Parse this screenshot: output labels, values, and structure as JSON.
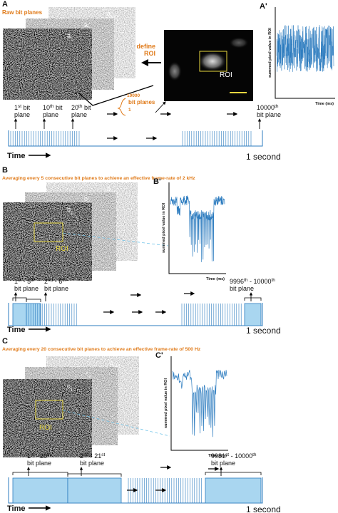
{
  "panel_a": {
    "letter": "A",
    "title": "Raw bit planes",
    "planes": [
      {
        "base": "a",
        "sub": "n+1"
      },
      {
        "base": "a",
        "sub": "n"
      },
      {
        "base": "a",
        "sub": "1"
      }
    ],
    "define_roi": [
      "define",
      "ROI"
    ],
    "roi": "ROI",
    "stack_count": [
      "10000",
      "bit planes"
    ],
    "stack_start": "1",
    "trace_letter": "A'",
    "trace_ylabel": "summed pixel value in ROI",
    "trace_xlabel": "Time (ms)",
    "timeline_labels": [
      {
        "lines": [
          [
            "1",
            {
              "sup": "st"
            },
            " bit"
          ],
          [
            "plane"
          ]
        ]
      },
      {
        "lines": [
          [
            "10",
            {
              "sup": "th"
            },
            " bit"
          ],
          [
            "plane"
          ]
        ]
      },
      {
        "lines": [
          [
            "20",
            {
              "sup": "th"
            },
            " bit"
          ],
          [
            "plane"
          ]
        ]
      },
      {
        "lines": [
          [
            "10000",
            {
              "sup": "th"
            }
          ],
          [
            "bit plane"
          ]
        ]
      }
    ],
    "time_label": "Time",
    "duration": "1 second"
  },
  "panel_b": {
    "letter": "B",
    "title": "Averaging every 5 consecutive bit planes to achieve an effective frame-rate of 2 kHz",
    "planes": [
      {
        "base": "b",
        "sub": "n+1"
      },
      {
        "base": "b",
        "sub": "n"
      },
      {
        "base": "b",
        "sub": "1"
      }
    ],
    "roi": "ROI",
    "trace_letter": "B'",
    "trace_ylabel": "summed pixel value in ROI",
    "trace_xlabel": "Time (ms)",
    "timeline_labels": [
      {
        "lines": [
          [
            "1",
            {
              "sup": "st"
            },
            " - 5",
            {
              "sup": "th"
            }
          ],
          [
            "bit plane"
          ]
        ]
      },
      {
        "lines": [
          [
            "2",
            {
              "sup": "nd"
            },
            " - 6",
            {
              "sup": "th"
            }
          ],
          [
            "bit plane"
          ]
        ]
      },
      {
        "lines": [
          [
            "9996",
            {
              "sup": "th"
            },
            " - 10000",
            {
              "sup": "th"
            }
          ],
          [
            "bit plane"
          ]
        ]
      }
    ],
    "time_label": "Time",
    "duration": "1 second"
  },
  "panel_c": {
    "letter": "C",
    "title": "Averaging every 20 consecutive bit planes to achieve an effective frame-rate of 500 Hz",
    "planes": [
      {
        "base": "c",
        "sub": "n+1"
      },
      {
        "base": "c",
        "sub": "n"
      },
      {
        "base": "c",
        "sub": "1"
      }
    ],
    "roi": "ROI",
    "trace_letter": "C'",
    "trace_ylabel": "summed pixel value in ROI",
    "trace_xlabel": "Time (ms)",
    "timeline_labels": [
      {
        "lines": [
          [
            "1",
            {
              "sup": "st"
            },
            " - 20",
            {
              "sup": "th"
            }
          ],
          [
            "bit plane"
          ]
        ]
      },
      {
        "lines": [
          [
            "2",
            {
              "sup": "nd"
            },
            " - 21",
            {
              "sup": "st"
            }
          ],
          [
            "bit plane"
          ]
        ]
      },
      {
        "lines": [
          [
            "9981",
            {
              "sup": "st"
            },
            " - 10000",
            {
              "sup": "th"
            }
          ],
          [
            "bit plane"
          ]
        ]
      }
    ],
    "time_label": "Time",
    "duration": "1 second"
  }
}
